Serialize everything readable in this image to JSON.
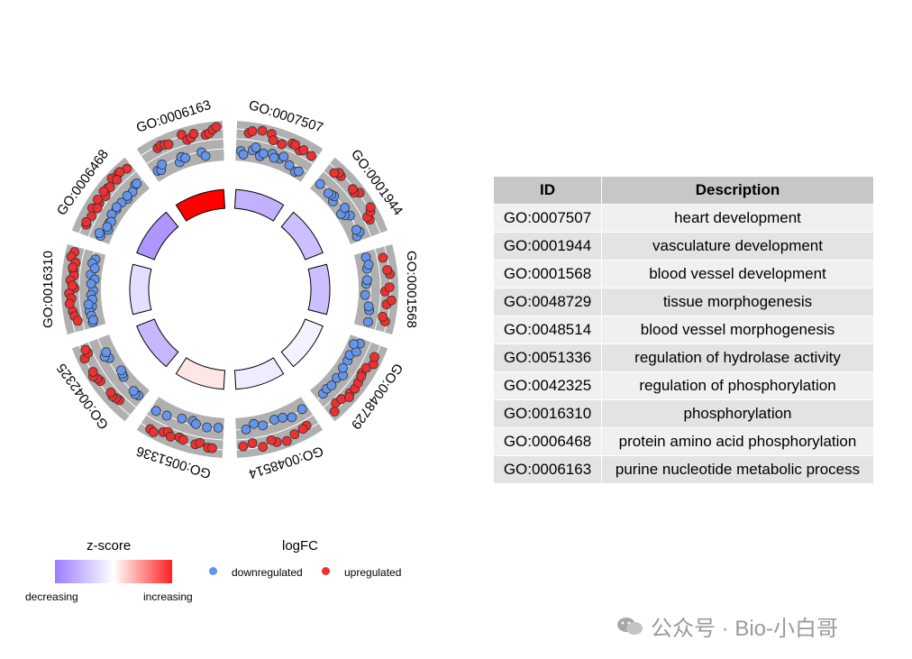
{
  "chart_data": {
    "type": "circular GO plot",
    "terms": [
      {
        "id": "GO:0007507",
        "description": "heart development",
        "zscore": -1.2,
        "logFC": [
          -0.9,
          -1.1,
          -0.8,
          -1.3,
          -0.7,
          -0.6,
          -1.0,
          -1.2,
          -0.8,
          -0.5,
          -1.1,
          -0.4,
          -0.9,
          0.6,
          0.8,
          1.1,
          0.9,
          0.7,
          1.2,
          0.5,
          0.8,
          1.0,
          0.6,
          0.9
        ]
      },
      {
        "id": "GO:0001944",
        "description": "vasculature development",
        "zscore": -1.0,
        "logFC": [
          -0.9,
          -1.2,
          -0.7,
          -1.0,
          -0.8,
          -1.1,
          -0.6,
          -0.9,
          -1.3,
          -0.8,
          -1.0,
          -0.7,
          0.7,
          0.9,
          1.2,
          0.6,
          1.0,
          0.8,
          1.1,
          0.7,
          0.9,
          1.3
        ]
      },
      {
        "id": "GO:0001568",
        "description": "blood vessel development",
        "zscore": -1.0,
        "logFC": [
          -0.8,
          -1.1,
          -0.7,
          -0.9,
          -1.2,
          -0.6,
          -1.0,
          -0.8,
          -0.7,
          0.6,
          0.9,
          1.1,
          0.8,
          0.7,
          1.0,
          0.6,
          0.9,
          1.2
        ]
      },
      {
        "id": "GO:0048729",
        "description": "tissue morphogenesis",
        "zscore": -0.2,
        "logFC": [
          -0.7,
          -1.0,
          -0.9,
          -0.8,
          -1.1,
          -0.6,
          -0.9,
          -0.7,
          -1.0,
          -0.8,
          -1.2,
          0.7,
          0.9,
          1.1,
          0.8,
          1.0,
          0.6,
          1.2,
          0.9,
          0.7,
          1.0,
          0.8,
          1.1
        ]
      },
      {
        "id": "GO:0048514",
        "description": "blood vessel morphogenesis",
        "zscore": -0.3,
        "logFC": [
          -0.8,
          -1.0,
          -0.7,
          -0.9,
          -1.1,
          -0.6,
          -0.8,
          0.7,
          1.0,
          0.8,
          1.2,
          0.6,
          0.9,
          1.1,
          0.8,
          0.7
        ]
      },
      {
        "id": "GO:0051336",
        "description": "regulation of hydrolase activity",
        "zscore": 0.3,
        "logFC": [
          -0.9,
          -1.1,
          -0.7,
          -0.8,
          -1.0,
          -0.6,
          -0.9,
          0.8,
          1.0,
          0.7,
          1.1,
          0.9,
          0.6,
          1.0,
          0.8,
          1.2,
          0.7,
          0.9
        ]
      },
      {
        "id": "GO:0042325",
        "description": "regulation of phosphorylation",
        "zscore": -1.1,
        "logFC": [
          -0.8,
          -1.0,
          -0.9,
          -0.7,
          -1.1,
          -0.6,
          -0.8,
          -1.2,
          -0.9,
          0.7,
          0.9,
          1.1,
          0.8,
          1.0,
          0.6,
          0.9,
          1.2,
          0.7,
          0.8,
          1.0
        ]
      },
      {
        "id": "GO:0016310",
        "description": "phosphorylation",
        "zscore": -0.5,
        "logFC": [
          -0.7,
          -0.9,
          -1.1,
          -0.8,
          -1.0,
          -0.6,
          -0.9,
          -1.2,
          -0.8,
          -0.7,
          -1.0,
          -0.9,
          -1.1,
          -0.8,
          -0.6,
          0.6,
          0.8,
          1.0,
          0.9,
          1.1,
          0.7,
          1.2,
          0.8,
          0.9,
          1.0,
          0.7,
          0.6,
          1.1,
          0.8,
          0.9
        ]
      },
      {
        "id": "GO:0006468",
        "description": "protein amino acid phosphorylation",
        "zscore": -1.6,
        "logFC": [
          -0.8,
          -1.0,
          -0.9,
          -1.1,
          -0.7,
          -1.2,
          -0.8,
          -0.9,
          -1.0,
          -0.6,
          -1.1,
          -0.8,
          -0.9,
          -0.7,
          -1.0,
          0.7,
          0.9,
          1.1,
          0.8,
          1.0,
          0.6,
          1.2,
          0.9,
          0.7,
          1.0,
          0.8,
          1.1,
          0.9,
          0.6,
          1.0,
          0.8
        ]
      },
      {
        "id": "GO:0006163",
        "description": "purine nucleotide metabolic process",
        "zscore": 3.2,
        "logFC": [
          -0.9,
          -1.1,
          -0.8,
          -1.0,
          -0.7,
          -1.2,
          -0.6,
          -0.9,
          0.7,
          0.9,
          1.2,
          0.8,
          1.0,
          0.6,
          1.1,
          0.9,
          0.7,
          1.3,
          0.8,
          1.0
        ]
      }
    ],
    "legend": {
      "zscore_title": "z-score",
      "zscore_low": "decreasing",
      "zscore_high": "increasing",
      "logfc_title": "logFC",
      "down_label": "downregulated",
      "up_label": "upregulated"
    },
    "colors": {
      "down": "#6495ED",
      "up": "#EE3030",
      "low": "#9b7cff",
      "mid": "#ffffff",
      "high": "#ff0000",
      "band": "#b0b0b0"
    }
  },
  "table": {
    "headers": [
      "ID",
      "Description"
    ],
    "rows": [
      [
        "GO:0007507",
        "heart development"
      ],
      [
        "GO:0001944",
        "vasculature development"
      ],
      [
        "GO:0001568",
        "blood vessel development"
      ],
      [
        "GO:0048729",
        "tissue morphogenesis"
      ],
      [
        "GO:0048514",
        "blood vessel morphogenesis"
      ],
      [
        "GO:0051336",
        "regulation of hydrolase activity"
      ],
      [
        "GO:0042325",
        "regulation of phosphorylation"
      ],
      [
        "GO:0016310",
        "phosphorylation"
      ],
      [
        "GO:0006468",
        "protein amino acid phosphorylation"
      ],
      [
        "GO:0006163",
        "purine nucleotide metabolic process"
      ]
    ]
  },
  "watermark": "公众号 · Bio-小白哥"
}
